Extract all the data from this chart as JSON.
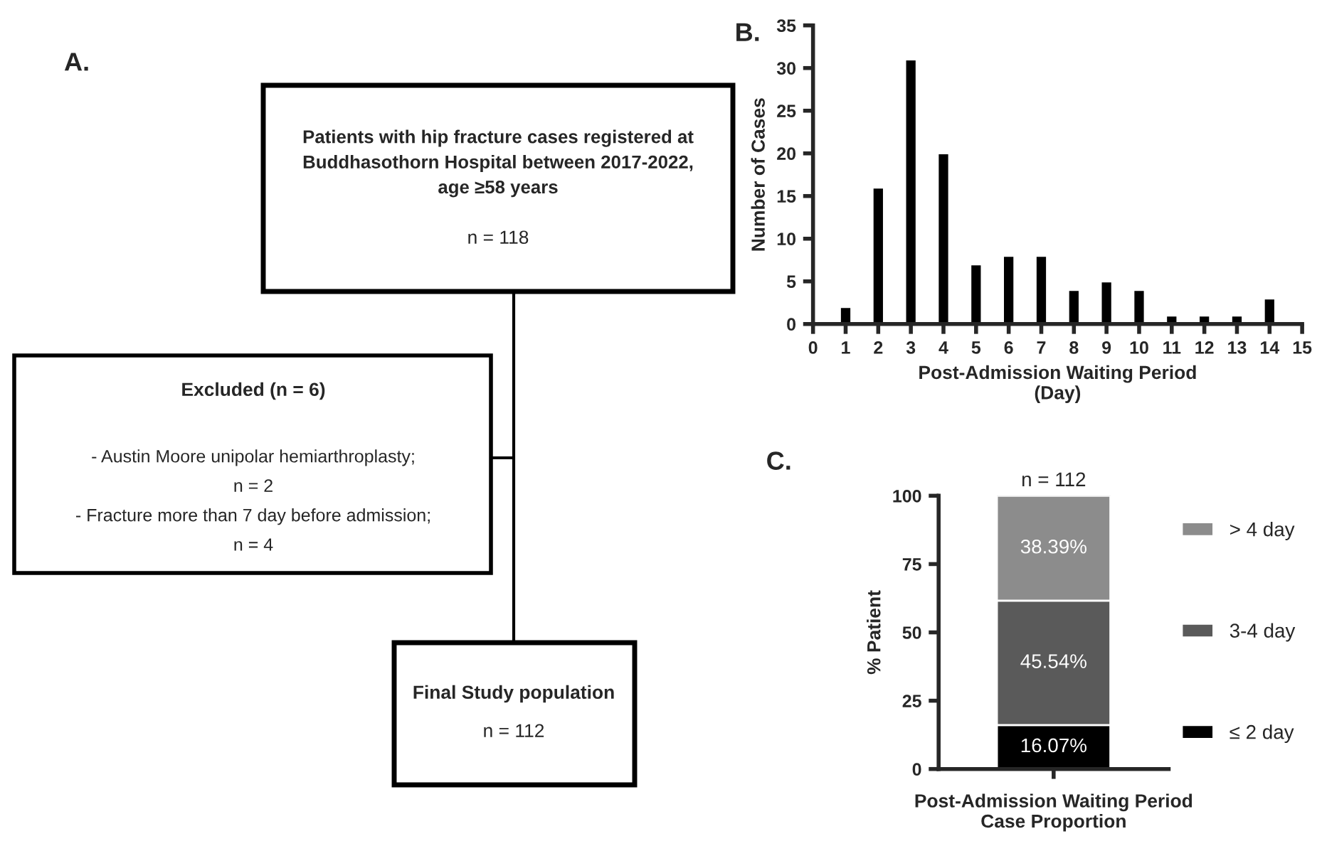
{
  "chart_data": [
    {
      "type": "other",
      "title": "A.",
      "annotations": [
        "Patients with hip fracture cases registered at\nBuddhasothorn Hospital between 2017-2022,\nage ≥58 years",
        "n = 118",
        "Excluded (n = 6)",
        "- Austin Moore unipolar hemiarthroplasty;\nn = 2\n- Fracture more than 7 day before admission;\nn = 4",
        "Final Study population",
        "n = 112"
      ]
    },
    {
      "type": "bar",
      "title": "B.",
      "xlabel": "Post-Admission Waiting Period\n(Day)",
      "ylabel": "Number of Cases",
      "x": [
        1,
        2,
        3,
        4,
        5,
        6,
        7,
        8,
        9,
        10,
        11,
        12,
        13,
        14
      ],
      "values": [
        2,
        16,
        31,
        20,
        7,
        8,
        8,
        4,
        5,
        4,
        1,
        1,
        1,
        3
      ],
      "color": "#000000",
      "xlim": [
        0,
        15
      ],
      "xticks": [
        0,
        1,
        2,
        3,
        4,
        5,
        6,
        7,
        8,
        9,
        10,
        11,
        12,
        13,
        14,
        15
      ],
      "ylim": [
        0,
        35
      ],
      "yticks": [
        0,
        5,
        10,
        15,
        20,
        25,
        30,
        35
      ]
    },
    {
      "type": "bar",
      "title": "C.",
      "xlabel": "Post-Admission Waiting Period\nCase Proportion",
      "ylabel": "% Patient",
      "categories": [
        null
      ],
      "stacked": true,
      "legend": "right",
      "series": [
        {
          "name": "≤ 2 day",
          "color": "#000000",
          "values": [
            16.07
          ],
          "value_labels": [
            "16.07%"
          ]
        },
        {
          "name": "3-4 day",
          "color": "#5a5a5a",
          "values": [
            45.54
          ],
          "value_labels": [
            "45.54%"
          ]
        },
        {
          "name": "> 4 day",
          "color": "#8c8c8c",
          "values": [
            38.39
          ],
          "value_labels": [
            "38.39%"
          ]
        }
      ],
      "ylim": [
        0,
        100
      ],
      "yticks": [
        0,
        25,
        50,
        75,
        100
      ],
      "annotations": [
        "n = 112"
      ]
    }
  ]
}
